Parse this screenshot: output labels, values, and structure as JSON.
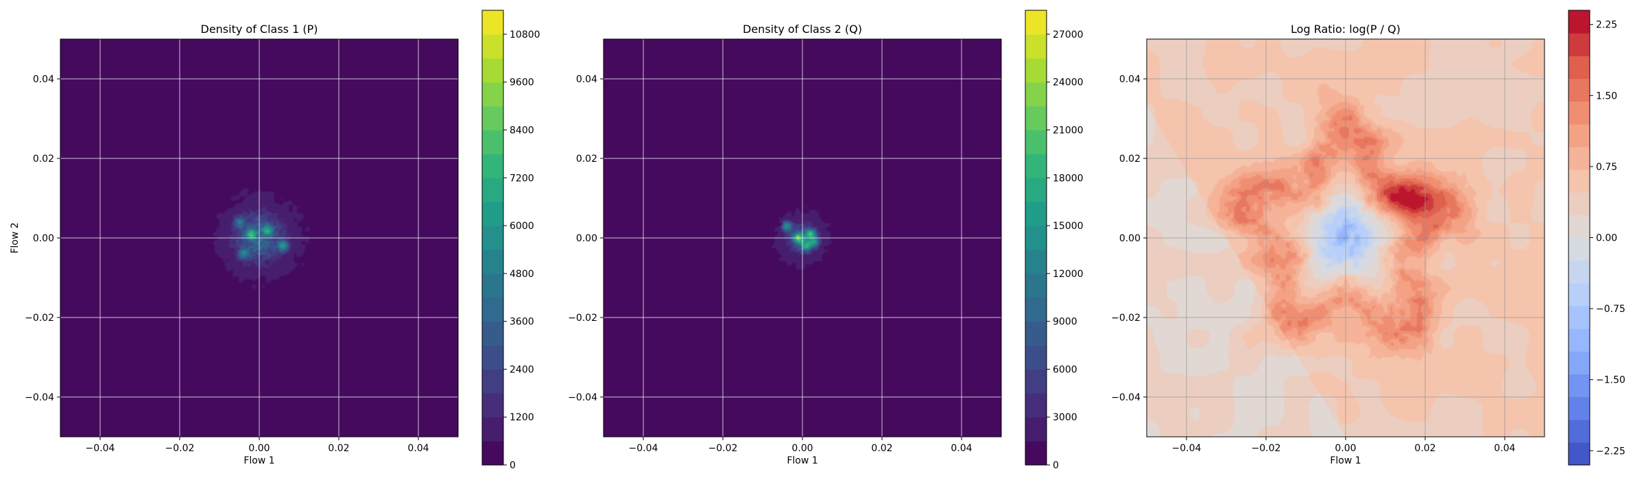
{
  "chart_data": [
    {
      "type": "heatmap",
      "title": "Density of Class 1 (P)",
      "xlabel": "Flow 1",
      "ylabel": "Flow 2",
      "xlim": [
        -0.05,
        0.05
      ],
      "ylim": [
        -0.05,
        0.05
      ],
      "xticks": [
        -0.04,
        -0.02,
        0.0,
        0.02,
        0.04
      ],
      "yticks": [
        -0.04,
        -0.02,
        0.0,
        0.02,
        0.04
      ],
      "grid": true,
      "colormap": "viridis",
      "colorbar": {
        "min": 0,
        "max": 11400,
        "ticks": [
          0,
          1200,
          2400,
          3600,
          4800,
          6000,
          7200,
          8400,
          9600,
          10800
        ],
        "levels": 19
      },
      "blob": {
        "center": [
          0.0,
          0.0
        ],
        "spread": [
          0.011,
          0.011
        ],
        "peak_value": 4200
      },
      "hotspots": [
        {
          "x": -0.002,
          "y": 0.001,
          "value": 5200
        },
        {
          "x": 0.002,
          "y": 0.002,
          "value": 4600
        },
        {
          "x": 0.006,
          "y": -0.002,
          "value": 4800
        },
        {
          "x": -0.004,
          "y": -0.004,
          "value": 3600
        },
        {
          "x": -0.005,
          "y": 0.004,
          "value": 3400
        }
      ]
    },
    {
      "type": "heatmap",
      "title": "Density of Class 2 (Q)",
      "xlabel": "Flow 1",
      "ylabel": "",
      "xlim": [
        -0.05,
        0.05
      ],
      "ylim": [
        -0.05,
        0.05
      ],
      "xticks": [
        -0.04,
        -0.02,
        0.0,
        0.02,
        0.04
      ],
      "yticks": [
        -0.04,
        -0.02,
        0.0,
        0.02,
        0.04
      ],
      "grid": true,
      "colormap": "viridis",
      "colorbar": {
        "min": 0,
        "max": 28500,
        "ticks": [
          0,
          3000,
          6000,
          9000,
          12000,
          15000,
          18000,
          21000,
          24000,
          27000
        ],
        "levels": 19
      },
      "blob": {
        "center": [
          0.0,
          0.0
        ],
        "spread": [
          0.0068,
          0.0068
        ],
        "peak_value": 9000
      },
      "hotspots": [
        {
          "x": -0.001,
          "y": 0.0,
          "value": 16000
        },
        {
          "x": 0.002,
          "y": 0.001,
          "value": 14000
        },
        {
          "x": -0.004,
          "y": 0.003,
          "value": 13000
        },
        {
          "x": 0.001,
          "y": -0.002,
          "value": 12000
        },
        {
          "x": 0.003,
          "y": -0.001,
          "value": 11000
        }
      ]
    },
    {
      "type": "heatmap",
      "title": "Log Ratio: log(P / Q)",
      "xlabel": "Flow 1",
      "ylabel": "",
      "xlim": [
        -0.05,
        0.05
      ],
      "ylim": [
        -0.05,
        0.05
      ],
      "xticks": [
        -0.04,
        -0.02,
        0.0,
        0.02,
        0.04
      ],
      "yticks": [
        -0.04,
        -0.02,
        0.0,
        0.02,
        0.04
      ],
      "grid": true,
      "colormap": "coolwarm",
      "colorbar": {
        "min": -2.4,
        "max": 2.4,
        "ticks": [
          -2.25,
          -1.5,
          -0.75,
          0.0,
          0.75,
          1.5,
          2.25
        ],
        "levels": 20
      },
      "background_value": 0.5,
      "center_value": -0.9,
      "ring_value": 1.3,
      "hotspots": [
        {
          "x": 0.018,
          "y": 0.008,
          "value": 2.0
        },
        {
          "x": 0.012,
          "y": 0.01,
          "value": 1.8
        },
        {
          "x": -0.012,
          "y": 0.004,
          "value": 1.2
        },
        {
          "x": 0.004,
          "y": -0.016,
          "value": 1.1
        },
        {
          "x": 0.006,
          "y": 0.018,
          "value": 1.2
        }
      ]
    }
  ]
}
